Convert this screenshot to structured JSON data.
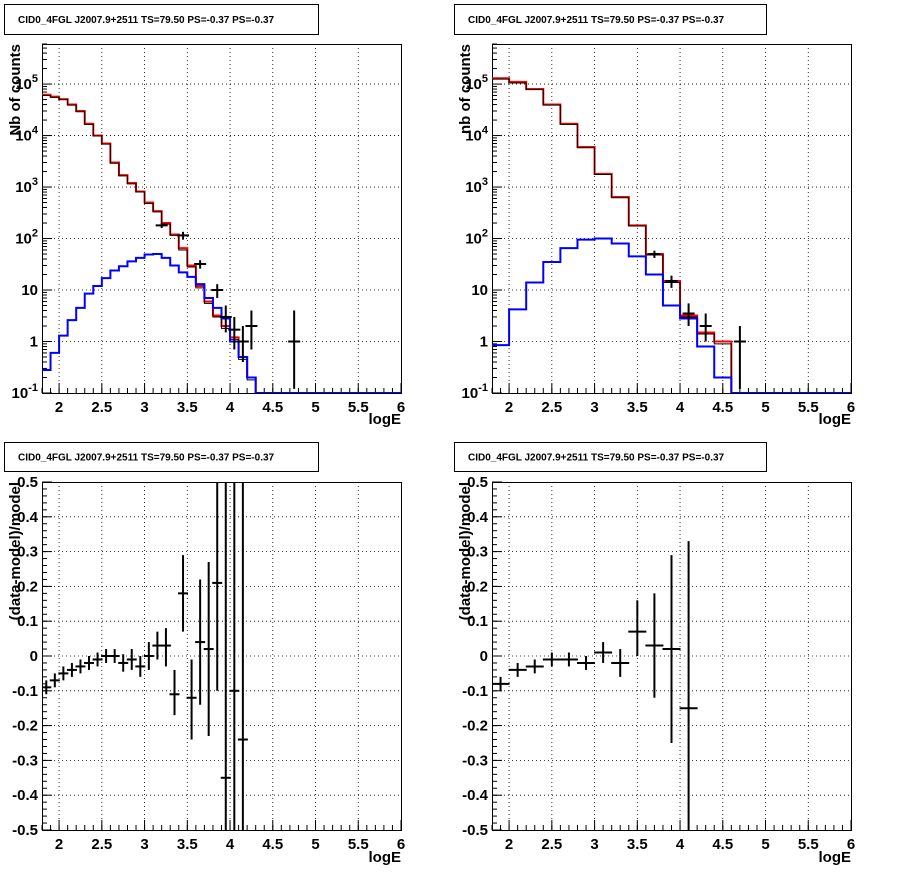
{
  "chart_data": [
    {
      "type": "step",
      "title": "CID0_4FGL J2007.9+2511 TS=79.50 PS=-0.37 PS=-0.37",
      "xlabel": "logE",
      "ylabel": "Nb of counts",
      "xlim": [
        1.8,
        6.0
      ],
      "ylim": [
        0.1,
        600000
      ],
      "yscale": "log",
      "grid": true,
      "xticks": [
        "2",
        "2.5",
        "3",
        "3.5",
        "4",
        "4.5",
        "5",
        "5.5",
        "6"
      ],
      "yticks": [
        "10^-1",
        "1",
        "10",
        "10^2",
        "10^3",
        "10^4",
        "10^5"
      ],
      "bin_edges": [
        1.8,
        1.9,
        2.0,
        2.1,
        2.2,
        2.3,
        2.4,
        2.5,
        2.6,
        2.7,
        2.8,
        2.9,
        3.0,
        3.1,
        3.2,
        3.3,
        3.4,
        3.5,
        3.6,
        3.7,
        3.8,
        3.9,
        4.0,
        4.1,
        4.2,
        4.3,
        4.4,
        4.5,
        4.6,
        4.7,
        4.8,
        4.9,
        5.0,
        5.1,
        5.2,
        5.3,
        5.4,
        5.5,
        5.6,
        5.7,
        5.8,
        5.9,
        6.0
      ],
      "series": [
        {
          "color": "#ff0000",
          "style": "step",
          "values": [
            62000,
            57000,
            51000,
            40000,
            30000,
            17000,
            10000,
            7000,
            3000,
            1700,
            1200,
            820,
            500,
            340,
            200,
            120,
            65,
            30,
            12,
            6,
            3.2,
            2,
            1.2,
            0.5,
            0.2,
            0.1,
            0.1,
            0.1,
            0.1,
            0.1,
            0.1,
            0.1,
            0.1,
            0.1,
            0.1,
            0.1,
            0.1,
            0.1,
            0.1,
            0.1,
            0.1,
            0.1
          ]
        },
        {
          "color": "#000000",
          "style": "step",
          "values": [
            60000,
            55000,
            50000,
            39000,
            29000,
            16500,
            9800,
            6800,
            2900,
            1650,
            1150,
            800,
            480,
            330,
            190,
            115,
            60,
            28,
            11,
            5.5,
            3,
            1.8,
            1.1,
            0.45,
            0.18,
            0.1,
            0.1,
            0.1,
            0.1,
            0.1,
            0.1,
            0.1,
            0.1,
            0.1,
            0.1,
            0.1,
            0.1,
            0.1,
            0.1,
            0.1,
            0.1,
            0.1
          ]
        },
        {
          "color": "#0000ff",
          "style": "step",
          "values": [
            0.28,
            0.6,
            1.3,
            2.6,
            4.5,
            8.5,
            12,
            17,
            24,
            29,
            36,
            42,
            49,
            50,
            42,
            30,
            22,
            18,
            13,
            7,
            4.5,
            2.8,
            1,
            0.5,
            0.2,
            0.1,
            0.1,
            0.1,
            0.1,
            0.1,
            0.1,
            0.1,
            0.1,
            0.1,
            0.1,
            0.1,
            0.1,
            0.1,
            0.1,
            0.1,
            0.1,
            0.1
          ]
        },
        {
          "color": "#000000",
          "style": "errorbar",
          "points": [
            {
              "x": 3.2,
              "y": 180,
              "lo": 160,
              "hi": 200
            },
            {
              "x": 3.45,
              "y": 115,
              "lo": 95,
              "hi": 135
            },
            {
              "x": 3.65,
              "y": 32,
              "lo": 26,
              "hi": 38
            },
            {
              "x": 3.85,
              "y": 10,
              "lo": 7,
              "hi": 13
            },
            {
              "x": 3.95,
              "y": 3,
              "lo": 1.5,
              "hi": 5
            },
            {
              "x": 4.05,
              "y": 1.7,
              "lo": 0.7,
              "hi": 3
            },
            {
              "x": 4.15,
              "y": 1,
              "lo": 0.4,
              "hi": 2
            },
            {
              "x": 4.25,
              "y": 2,
              "lo": 0.7,
              "hi": 4
            },
            {
              "x": 4.75,
              "y": 1,
              "lo": 0.12,
              "hi": 4
            }
          ]
        }
      ]
    },
    {
      "type": "step",
      "title": "CID0_4FGL J2007.9+2511 TS=79.50 PS=-0.37 PS=-0.37",
      "xlabel": "logE",
      "ylabel": "nb of counts",
      "xlim": [
        1.8,
        6.0
      ],
      "ylim": [
        0.1,
        600000
      ],
      "yscale": "log",
      "grid": true,
      "xticks": [
        "2",
        "2.5",
        "3",
        "3.5",
        "4",
        "4.5",
        "5",
        "5.5",
        "6"
      ],
      "yticks": [
        "10^-1",
        "1",
        "10",
        "10^2",
        "10^3",
        "10^4",
        "10^5"
      ],
      "bin_edges": [
        1.8,
        2.0,
        2.2,
        2.4,
        2.6,
        2.8,
        3.0,
        3.2,
        3.4,
        3.6,
        3.8,
        4.0,
        4.2,
        4.4,
        4.6,
        4.8,
        5.0,
        5.2,
        5.4,
        5.6,
        5.8,
        6.0
      ],
      "series": [
        {
          "color": "#ff0000",
          "style": "step",
          "values": [
            130000,
            110000,
            80000,
            40000,
            17000,
            6000,
            1800,
            640,
            180,
            50,
            15,
            3.2,
            1.5,
            1,
            0.1,
            0.1,
            0.1,
            0.1,
            0.1,
            0.1,
            0.1
          ]
        },
        {
          "color": "#000000",
          "style": "step",
          "values": [
            125000,
            105000,
            78000,
            39000,
            16500,
            5800,
            1750,
            620,
            175,
            48,
            14,
            3,
            1.4,
            0.9,
            0.1,
            0.1,
            0.1,
            0.1,
            0.1,
            0.1,
            0.1
          ]
        },
        {
          "color": "#0000ff",
          "style": "step",
          "values": [
            0.85,
            4.2,
            14,
            35,
            65,
            95,
            100,
            80,
            45,
            20,
            5,
            2.8,
            0.8,
            0.2,
            0.1,
            0.1,
            0.1,
            0.1,
            0.1,
            0.1,
            0.1
          ]
        },
        {
          "color": "#000000",
          "style": "errorbar",
          "points": [
            {
              "x": 3.7,
              "y": 50,
              "lo": 42,
              "hi": 58
            },
            {
              "x": 3.9,
              "y": 15,
              "lo": 11,
              "hi": 19
            },
            {
              "x": 4.1,
              "y": 3.5,
              "lo": 2,
              "hi": 5.5
            },
            {
              "x": 4.3,
              "y": 2,
              "lo": 1,
              "hi": 3.5
            },
            {
              "x": 4.7,
              "y": 1,
              "lo": 0.12,
              "hi": 2
            }
          ]
        }
      ]
    },
    {
      "type": "errorbar",
      "title": "CID0_4FGL J2007.9+2511 TS=79.50 PS=-0.37 PS=-0.37",
      "xlabel": "logE",
      "ylabel": "(data-model)/model",
      "xlim": [
        1.8,
        6.0
      ],
      "ylim": [
        -0.5,
        0.5
      ],
      "grid": true,
      "xticks": [
        "2",
        "2.5",
        "3",
        "3.5",
        "4",
        "4.5",
        "5",
        "5.5",
        "6"
      ],
      "yticks": [
        "-0.5",
        "-0.4",
        "-0.3",
        "-0.2",
        "-0.1",
        "0",
        "0.1",
        "0.2",
        "0.3",
        "0.4",
        "0.5"
      ],
      "points": [
        {
          "x": 1.85,
          "y": -0.09,
          "lo": -0.11,
          "hi": -0.07
        },
        {
          "x": 1.95,
          "y": -0.07,
          "lo": -0.09,
          "hi": -0.05
        },
        {
          "x": 2.05,
          "y": -0.05,
          "lo": -0.07,
          "hi": -0.03
        },
        {
          "x": 2.15,
          "y": -0.04,
          "lo": -0.06,
          "hi": -0.02
        },
        {
          "x": 2.25,
          "y": -0.03,
          "lo": -0.05,
          "hi": -0.01
        },
        {
          "x": 2.35,
          "y": -0.02,
          "lo": -0.04,
          "hi": 0.0
        },
        {
          "x": 2.45,
          "y": -0.01,
          "lo": -0.03,
          "hi": 0.01
        },
        {
          "x": 2.55,
          "y": 0.0,
          "lo": -0.02,
          "hi": 0.02
        },
        {
          "x": 2.65,
          "y": 0.0,
          "lo": -0.02,
          "hi": 0.02
        },
        {
          "x": 2.75,
          "y": -0.02,
          "lo": -0.045,
          "hi": 0.005
        },
        {
          "x": 2.85,
          "y": -0.01,
          "lo": -0.04,
          "hi": 0.02
        },
        {
          "x": 2.95,
          "y": -0.03,
          "lo": -0.06,
          "hi": 0.0
        },
        {
          "x": 3.05,
          "y": 0.0,
          "lo": -0.04,
          "hi": 0.04
        },
        {
          "x": 3.15,
          "y": 0.03,
          "lo": -0.01,
          "hi": 0.07
        },
        {
          "x": 3.25,
          "y": 0.03,
          "lo": -0.03,
          "hi": 0.08
        },
        {
          "x": 3.35,
          "y": -0.11,
          "lo": -0.17,
          "hi": -0.04
        },
        {
          "x": 3.45,
          "y": 0.18,
          "lo": 0.07,
          "hi": 0.29
        },
        {
          "x": 3.55,
          "y": -0.12,
          "lo": -0.24,
          "hi": -0.01
        },
        {
          "x": 3.65,
          "y": 0.04,
          "lo": -0.14,
          "hi": 0.22
        },
        {
          "x": 3.75,
          "y": 0.02,
          "lo": -0.23,
          "hi": 0.27
        },
        {
          "x": 3.85,
          "y": 0.21,
          "lo": -0.1,
          "hi": 0.5
        },
        {
          "x": 3.95,
          "y": -0.35,
          "lo": -0.5,
          "hi": 0.5
        },
        {
          "x": 4.05,
          "y": -0.1,
          "lo": -0.5,
          "hi": 0.5
        },
        {
          "x": 4.15,
          "y": -0.24,
          "lo": -0.5,
          "hi": 0.5
        }
      ]
    },
    {
      "type": "errorbar",
      "title": "CID0_4FGL J2007.9+2511 TS=79.50 PS=-0.37 PS=-0.37",
      "xlabel": "logE",
      "ylabel": "(data-model)/model",
      "xlim": [
        1.8,
        6.0
      ],
      "ylim": [
        -0.5,
        0.5
      ],
      "grid": true,
      "xticks": [
        "2",
        "2.5",
        "3",
        "3.5",
        "4",
        "4.5",
        "5",
        "5.5",
        "6"
      ],
      "yticks": [
        "-0.5",
        "-0.4",
        "-0.3",
        "-0.2",
        "-0.1",
        "0",
        "0.1",
        "0.2",
        "0.3",
        "0.4",
        "0.5"
      ],
      "points": [
        {
          "x": 1.9,
          "y": -0.08,
          "lo": -0.1,
          "hi": -0.06
        },
        {
          "x": 2.1,
          "y": -0.04,
          "lo": -0.06,
          "hi": -0.02
        },
        {
          "x": 2.3,
          "y": -0.03,
          "lo": -0.05,
          "hi": -0.01
        },
        {
          "x": 2.5,
          "y": -0.01,
          "lo": -0.03,
          "hi": 0.01
        },
        {
          "x": 2.7,
          "y": -0.01,
          "lo": -0.03,
          "hi": 0.01
        },
        {
          "x": 2.9,
          "y": -0.02,
          "lo": -0.04,
          "hi": 0.0
        },
        {
          "x": 3.1,
          "y": 0.01,
          "lo": -0.02,
          "hi": 0.04
        },
        {
          "x": 3.3,
          "y": -0.02,
          "lo": -0.06,
          "hi": 0.02
        },
        {
          "x": 3.5,
          "y": 0.07,
          "lo": 0.0,
          "hi": 0.16
        },
        {
          "x": 3.7,
          "y": 0.03,
          "lo": -0.12,
          "hi": 0.18
        },
        {
          "x": 3.9,
          "y": 0.02,
          "lo": -0.25,
          "hi": 0.29
        },
        {
          "x": 4.1,
          "y": -0.15,
          "lo": -0.5,
          "hi": 0.33
        }
      ]
    }
  ]
}
